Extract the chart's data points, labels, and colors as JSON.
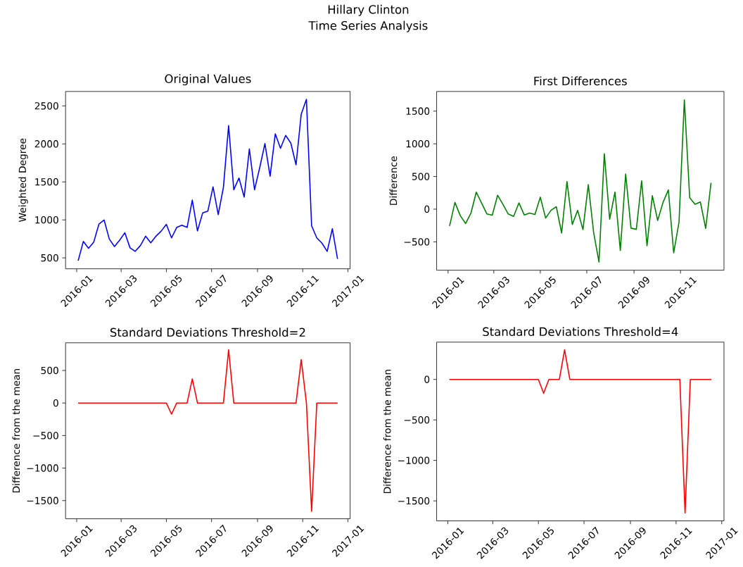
{
  "chart_data": [
    {
      "type": "other",
      "title": "Hillary Clinton",
      "subtitle": "Time Series Analysis"
    },
    {
      "type": "line",
      "title": "Original Values",
      "ylabel": "Weighted Degree",
      "color": "#0000ff",
      "x": [
        "2016-01-03",
        "2016-01-10",
        "2016-01-17",
        "2016-01-24",
        "2016-01-31",
        "2016-02-07",
        "2016-02-14",
        "2016-02-21",
        "2016-02-28",
        "2016-03-06",
        "2016-03-13",
        "2016-03-20",
        "2016-03-27",
        "2016-04-03",
        "2016-04-10",
        "2016-04-17",
        "2016-04-24",
        "2016-05-01",
        "2016-05-08",
        "2016-05-15",
        "2016-05-22",
        "2016-05-29",
        "2016-06-05",
        "2016-06-12",
        "2016-06-19",
        "2016-06-26",
        "2016-07-03",
        "2016-07-10",
        "2016-07-17",
        "2016-07-24",
        "2016-07-31",
        "2016-08-07",
        "2016-08-14",
        "2016-08-21",
        "2016-08-28",
        "2016-09-04",
        "2016-09-11",
        "2016-09-18",
        "2016-09-25",
        "2016-10-02",
        "2016-10-09",
        "2016-10-16",
        "2016-10-23",
        "2016-10-30",
        "2016-11-06",
        "2016-11-13",
        "2016-11-20",
        "2016-11-27",
        "2016-12-04",
        "2016-12-11",
        "2016-12-18"
      ],
      "values": [
        463,
        717,
        626,
        708,
        944,
        999,
        748,
        650,
        733,
        831,
        632,
        586,
        662,
        785,
        699,
        785,
        852,
        941,
        763,
        901,
        929,
        901,
        1260,
        855,
        1091,
        1116,
        1434,
        1070,
        1428,
        2240,
        1397,
        1551,
        1300,
        1933,
        1397,
        1688,
        2004,
        1575,
        2133,
        1943,
        2111,
        2010,
        1725,
        2393,
        2586,
        923,
        763,
        693,
        586,
        883,
        485
      ],
      "xlim": [
        "2015-12-17",
        "2017-01-04"
      ],
      "ylim": [
        356,
        2690
      ],
      "xticks": [
        "2016-01",
        "2016-03",
        "2016-05",
        "2016-07",
        "2016-09",
        "2016-11",
        "2017-01"
      ],
      "yticks": [
        500,
        1000,
        1500,
        2000,
        2500
      ]
    },
    {
      "type": "line",
      "title": "First Differences",
      "ylabel": "Difference",
      "color": "#008000",
      "x": [
        "2016-01-03",
        "2016-01-10",
        "2016-01-17",
        "2016-01-24",
        "2016-01-31",
        "2016-02-07",
        "2016-02-14",
        "2016-02-21",
        "2016-02-28",
        "2016-03-06",
        "2016-03-13",
        "2016-03-20",
        "2016-03-27",
        "2016-04-03",
        "2016-04-10",
        "2016-04-17",
        "2016-04-24",
        "2016-05-01",
        "2016-05-08",
        "2016-05-15",
        "2016-05-22",
        "2016-05-29",
        "2016-06-05",
        "2016-06-12",
        "2016-06-19",
        "2016-06-26",
        "2016-07-03",
        "2016-07-10",
        "2016-07-17",
        "2016-07-24",
        "2016-07-31",
        "2016-08-07",
        "2016-08-14",
        "2016-08-21",
        "2016-08-28",
        "2016-09-04",
        "2016-09-11",
        "2016-09-18",
        "2016-09-25",
        "2016-10-02",
        "2016-10-09",
        "2016-10-16",
        "2016-10-23",
        "2016-10-30",
        "2016-11-06",
        "2016-11-13",
        "2016-11-20",
        "2016-11-27",
        "2016-12-04",
        "2016-12-11"
      ],
      "values": [
        -257,
        103,
        -99,
        -220,
        -62,
        261,
        92,
        -74,
        -92,
        213,
        74,
        -74,
        -110,
        96,
        -88,
        -59,
        -81,
        184,
        -136,
        -18,
        37,
        -364,
        423,
        -235,
        -18,
        -312,
        375,
        -357,
        -809,
        849,
        -154,
        261,
        -632,
        537,
        -290,
        -309,
        434,
        -559,
        206,
        -173,
        103,
        294,
        -669,
        -199,
        1673,
        176,
        74,
        110,
        -294,
        404
      ],
      "xlim": [
        "2015-12-17",
        "2016-12-28"
      ],
      "ylim": [
        -934,
        1801
      ],
      "xticks": [
        "2016-01",
        "2016-03",
        "2016-05",
        "2016-07",
        "2016-09",
        "2016-11"
      ],
      "yticks": [
        {
          "value": -500,
          "label": "−500"
        },
        0,
        500,
        1000,
        1500
      ]
    },
    {
      "type": "line",
      "title": "Standard Deviations Threshold=2",
      "ylabel": "Difference from the mean",
      "color": "#ff0000",
      "x": [
        "2016-01-03",
        "2016-01-10",
        "2016-01-17",
        "2016-01-24",
        "2016-01-31",
        "2016-02-07",
        "2016-02-14",
        "2016-02-21",
        "2016-02-28",
        "2016-03-06",
        "2016-03-13",
        "2016-03-20",
        "2016-03-27",
        "2016-04-03",
        "2016-04-10",
        "2016-04-17",
        "2016-04-24",
        "2016-05-01",
        "2016-05-08",
        "2016-05-15",
        "2016-05-22",
        "2016-05-29",
        "2016-06-05",
        "2016-06-12",
        "2016-06-19",
        "2016-06-26",
        "2016-07-03",
        "2016-07-10",
        "2016-07-17",
        "2016-07-24",
        "2016-07-31",
        "2016-08-07",
        "2016-08-14",
        "2016-08-21",
        "2016-08-28",
        "2016-09-04",
        "2016-09-11",
        "2016-09-18",
        "2016-09-25",
        "2016-10-02",
        "2016-10-09",
        "2016-10-16",
        "2016-10-23",
        "2016-10-30",
        "2016-11-06",
        "2016-11-13",
        "2016-11-20",
        "2016-11-27",
        "2016-12-04",
        "2016-12-11",
        "2016-12-18"
      ],
      "values": [
        0,
        0,
        0,
        0,
        0,
        0,
        0,
        0,
        0,
        0,
        0,
        0,
        0,
        0,
        0,
        0,
        0,
        0,
        -171,
        0,
        0,
        0,
        371,
        0,
        0,
        0,
        0,
        0,
        0,
        818,
        0,
        0,
        0,
        0,
        0,
        0,
        0,
        0,
        0,
        0,
        0,
        0,
        0,
        668,
        0,
        -1664,
        0,
        0,
        0,
        0,
        0
      ],
      "xlim": [
        "2015-12-17",
        "2017-01-04"
      ],
      "ylim": [
        -1779,
        925
      ],
      "xticks": [
        "2016-01",
        "2016-03",
        "2016-05",
        "2016-07",
        "2016-09",
        "2016-11",
        "2017-01"
      ],
      "yticks": [
        {
          "value": -1500,
          "label": "−1500"
        },
        {
          "value": -1000,
          "label": "−1000"
        },
        {
          "value": -500,
          "label": "−500"
        },
        0,
        500
      ]
    },
    {
      "type": "line",
      "title": "Standard Deviations Threshold=4",
      "ylabel": "Difference from the mean",
      "color": "#ff0000",
      "x": [
        "2016-01-03",
        "2016-01-10",
        "2016-01-17",
        "2016-01-24",
        "2016-01-31",
        "2016-02-07",
        "2016-02-14",
        "2016-02-21",
        "2016-02-28",
        "2016-03-06",
        "2016-03-13",
        "2016-03-20",
        "2016-03-27",
        "2016-04-03",
        "2016-04-10",
        "2016-04-17",
        "2016-04-24",
        "2016-05-01",
        "2016-05-08",
        "2016-05-15",
        "2016-05-22",
        "2016-05-29",
        "2016-06-05",
        "2016-06-12",
        "2016-06-19",
        "2016-06-26",
        "2016-07-03",
        "2016-07-10",
        "2016-07-17",
        "2016-07-24",
        "2016-07-31",
        "2016-08-07",
        "2016-08-14",
        "2016-08-21",
        "2016-08-28",
        "2016-09-04",
        "2016-09-11",
        "2016-09-18",
        "2016-09-25",
        "2016-10-02",
        "2016-10-09",
        "2016-10-16",
        "2016-10-23",
        "2016-10-30",
        "2016-11-06",
        "2016-11-13",
        "2016-11-20",
        "2016-11-27",
        "2016-12-04",
        "2016-12-11",
        "2016-12-18"
      ],
      "values": [
        0,
        0,
        0,
        0,
        0,
        0,
        0,
        0,
        0,
        0,
        0,
        0,
        0,
        0,
        0,
        0,
        0,
        0,
        -170,
        0,
        0,
        0,
        366,
        0,
        0,
        0,
        0,
        0,
        0,
        0,
        0,
        0,
        0,
        0,
        0,
        0,
        0,
        0,
        0,
        0,
        0,
        0,
        0,
        0,
        0,
        -1649,
        0,
        0,
        0,
        0,
        0
      ],
      "xlim": [
        "2015-12-17",
        "2017-01-04"
      ],
      "ylim": [
        -1747,
        461
      ],
      "xticks": [
        "2016-01",
        "2016-03",
        "2016-05",
        "2016-07",
        "2016-09",
        "2016-11",
        "2017-01"
      ],
      "yticks": [
        {
          "value": -1500,
          "label": "−1500"
        },
        {
          "value": -1000,
          "label": "−1000"
        },
        {
          "value": -500,
          "label": "−500"
        },
        0
      ]
    }
  ]
}
